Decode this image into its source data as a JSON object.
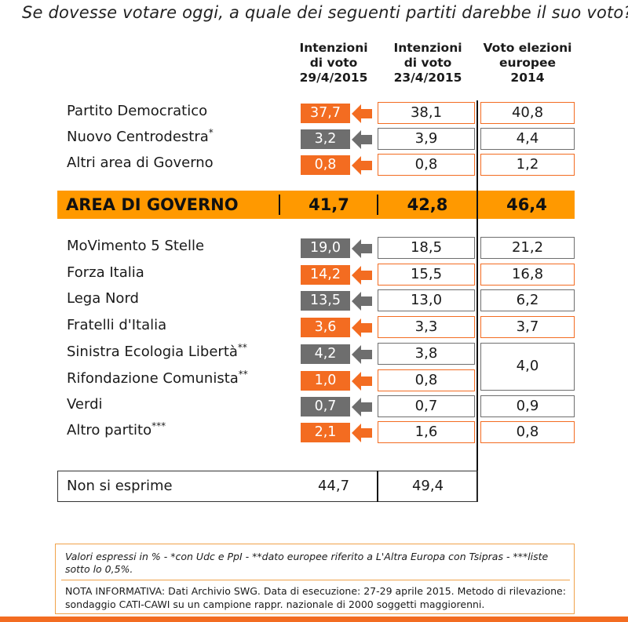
{
  "question": "Se dovesse votare oggi, a quale dei seguenti partiti darebbe il suo voto?",
  "columns": [
    [
      "Intenzioni",
      "di voto",
      "29/4/2015"
    ],
    [
      "Intenzioni",
      "di voto",
      "23/4/2015"
    ],
    [
      "Voto elezioni",
      "europee",
      "2014"
    ]
  ],
  "colors": {
    "orange": "#f36c21",
    "gray": "#6e6e6e",
    "band": "#ff9900"
  },
  "rows": [
    {
      "party": "Partito Democratico",
      "mark": "",
      "cur": "37,7",
      "prev": "38,1",
      "eu": "40,8",
      "color": "orange"
    },
    {
      "party": "Nuovo Centrodestra",
      "mark": "*",
      "cur": "3,2",
      "prev": "3,9",
      "eu": "4,4",
      "color": "gray"
    },
    {
      "party": "Altri area di Governo",
      "mark": "",
      "cur": "0,8",
      "prev": "0,8",
      "eu": "1,2",
      "color": "orange"
    },
    {
      "party": "MoVimento 5 Stelle",
      "mark": "",
      "cur": "19,0",
      "prev": "18,5",
      "eu": "21,2",
      "color": "gray"
    },
    {
      "party": "Forza Italia",
      "mark": "",
      "cur": "14,2",
      "prev": "15,5",
      "eu": "16,8",
      "color": "orange"
    },
    {
      "party": "Lega Nord",
      "mark": "",
      "cur": "13,5",
      "prev": "13,0",
      "eu": "6,2",
      "color": "gray"
    },
    {
      "party": "Fratelli d'Italia",
      "mark": "",
      "cur": "3,6",
      "prev": "3,3",
      "eu": "3,7",
      "color": "orange"
    },
    {
      "party": "Sinistra Ecologia Libertà",
      "mark": "**",
      "cur": "4,2",
      "prev": "3,8",
      "eu": "4,0",
      "color": "gray"
    },
    {
      "party": "Rifondazione Comunista",
      "mark": "**",
      "cur": "1,0",
      "prev": "0,8",
      "eu": "",
      "color": "orange"
    },
    {
      "party": "Verdi",
      "mark": "",
      "cur": "0,7",
      "prev": "0,7",
      "eu": "0,9",
      "color": "gray"
    },
    {
      "party": "Altro partito",
      "mark": "***",
      "cur": "2,1",
      "prev": "1,6",
      "eu": "0,8",
      "color": "orange"
    }
  ],
  "government_area": {
    "label": "AREA DI GOVERNO",
    "cur": "41,7",
    "prev": "42,8",
    "eu": "46,4"
  },
  "no_answer": {
    "label": "Non si esprime",
    "cur": "44,7",
    "prev": "49,4"
  },
  "notes_line1": "Valori espressi in % - *con Udc e PpI  - **dato europee riferito a L'Altra Europa con Tsipras - ***liste sotto lo 0,5%.",
  "notes_line2": {
    "k1": "NOTA INFORMATIVA:",
    "v1": " Dati Archivio SWG. ",
    "k2": "Data di esecuzione:",
    "v2": " 27-29 aprile 2015. ",
    "k3": "Metodo di rilevazione:",
    "v3": " sondaggio CATI-CAWI su un campione rappr. nazionale di 2000 soggetti maggiorenni."
  },
  "chart_data": {
    "type": "table",
    "title": "Se dovesse votare oggi, a quale dei seguenti partiti darebbe il suo voto?",
    "categories": [
      "Partito Democratico",
      "Nuovo Centrodestra",
      "Altri area di Governo",
      "AREA DI GOVERNO",
      "MoVimento 5 Stelle",
      "Forza Italia",
      "Lega Nord",
      "Fratelli d'Italia",
      "Sinistra Ecologia Libertà",
      "Rifondazione Comunista",
      "Verdi",
      "Altro partito",
      "Non si esprime"
    ],
    "series": [
      {
        "name": "Intenzioni di voto 29/4/2015",
        "values": [
          37.7,
          3.2,
          0.8,
          41.7,
          19.0,
          14.2,
          13.5,
          3.6,
          4.2,
          1.0,
          0.7,
          2.1,
          44.7
        ]
      },
      {
        "name": "Intenzioni di voto 23/4/2015",
        "values": [
          38.1,
          3.9,
          0.8,
          42.8,
          18.5,
          15.5,
          13.0,
          3.3,
          3.8,
          0.8,
          0.7,
          1.6,
          49.4
        ]
      },
      {
        "name": "Voto elezioni europee 2014",
        "values": [
          40.8,
          4.4,
          1.2,
          46.4,
          21.2,
          16.8,
          6.2,
          3.7,
          4.0,
          4.0,
          0.9,
          0.8,
          null
        ]
      }
    ]
  }
}
